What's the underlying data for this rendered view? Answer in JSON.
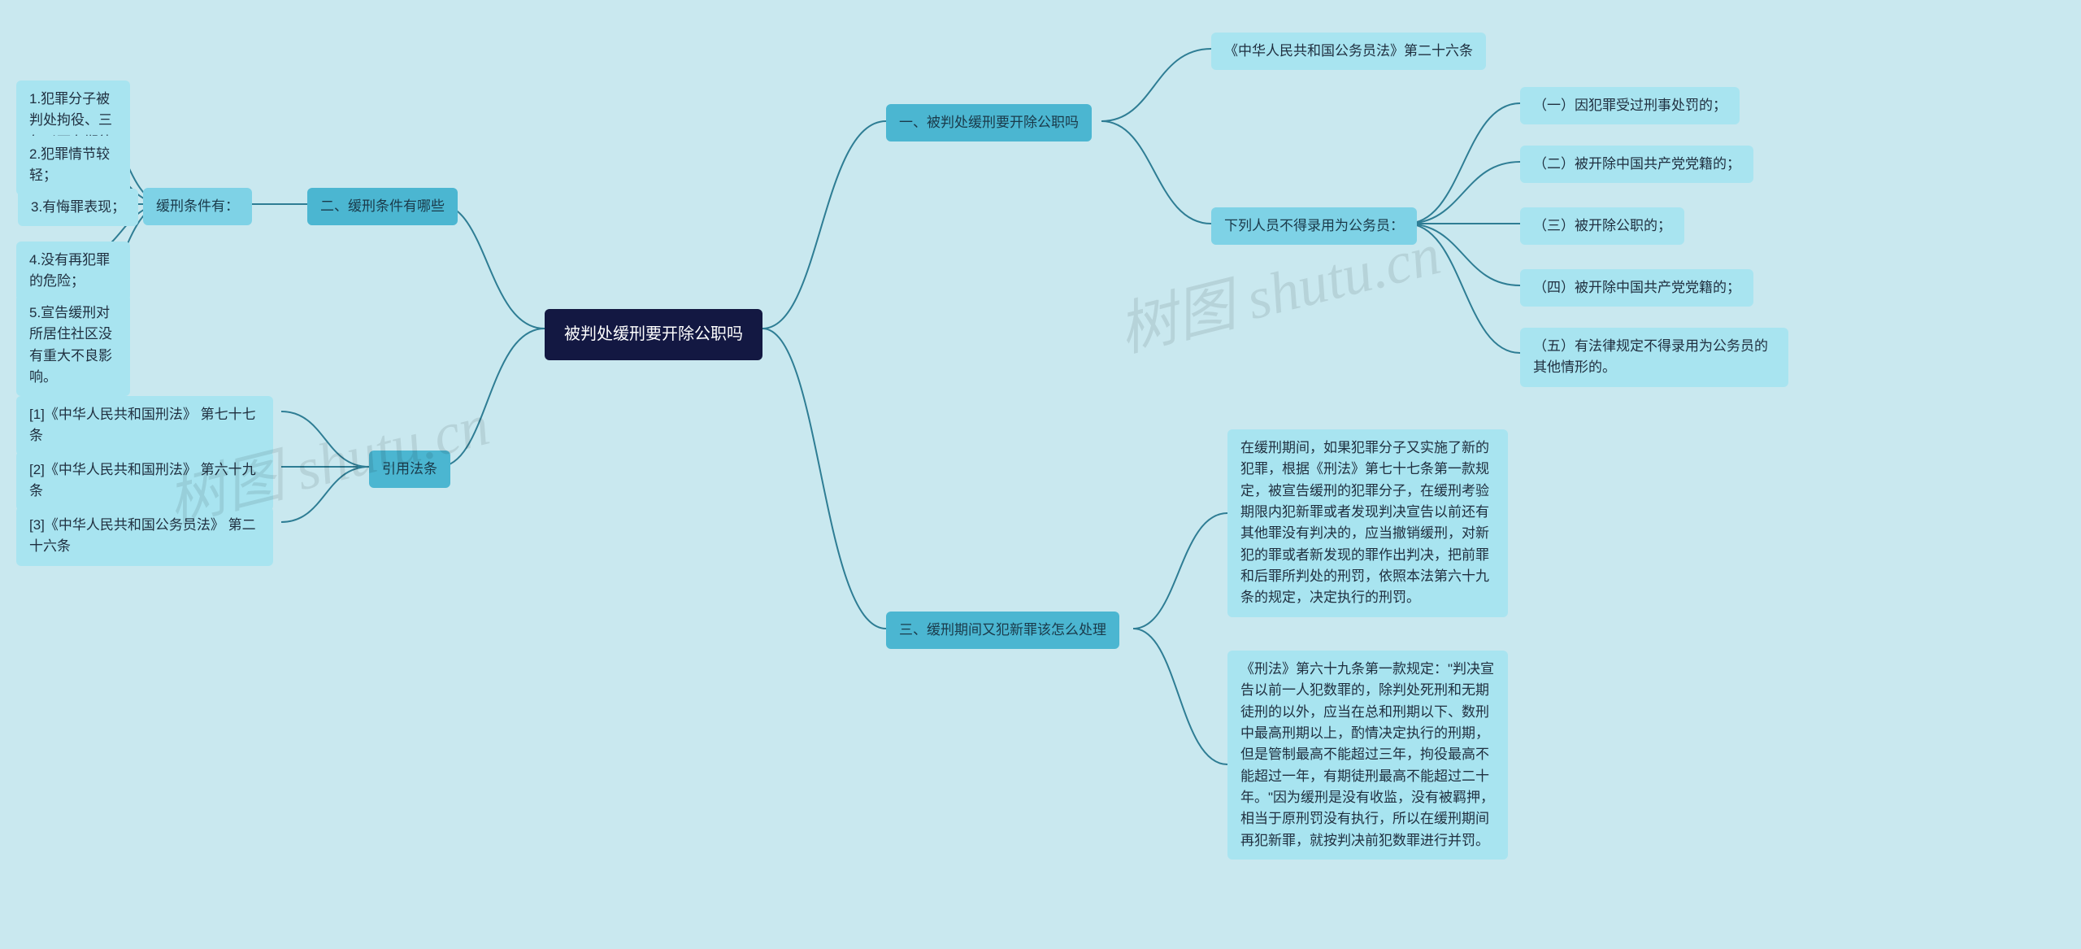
{
  "background_color": "#c9e8ef",
  "colors": {
    "root_bg": "#131842",
    "root_text": "#ffffff",
    "branch1_bg": "#4bb6d1",
    "branch2_bg": "#7ed2e6",
    "leaf_bg": "#a8e4f0",
    "connector": "#2e7d94",
    "text": "#203040"
  },
  "watermark_text": "树图 shutu.cn",
  "root": "被判处缓刑要开除公职吗",
  "right": {
    "b1": {
      "label": "一、被判处缓刑要开除公职吗",
      "c1": "《中华人民共和国公务员法》第二十六条",
      "c2": {
        "label": "下列人员不得录用为公务员：",
        "items": {
          "i1": "（一）因犯罪受过刑事处罚的；",
          "i2": "（二）被开除中国共产党党籍的；",
          "i3": "（三）被开除公职的；",
          "i4": "（四）被开除中国共产党党籍的；",
          "i5": "（五）有法律规定不得录用为公务员的其他情形的。"
        }
      }
    },
    "b3": {
      "label": "三、缓刑期间又犯新罪该怎么处理",
      "p1": "在缓刑期间，如果犯罪分子又实施了新的犯罪，根据《刑法》第七十七条第一款规定，被宣告缓刑的犯罪分子，在缓刑考验期限内犯新罪或者发现判决宣告以前还有其他罪没有判决的，应当撤销缓刑，对新犯的罪或者新发现的罪作出判决，把前罪和后罪所判处的刑罚，依照本法第六十九条的规定，决定执行的刑罚。",
      "p2": "《刑法》第六十九条第一款规定：\"判决宣告以前一人犯数罪的，除判处死刑和无期徒刑的以外，应当在总和刑期以下、数刑中最高刑期以上，酌情决定执行的刑期，但是管制最高不能超过三年，拘役最高不能超过一年，有期徒刑最高不能超过二十年。\"因为缓刑是没有收监，没有被羁押，相当于原刑罚没有执行，所以在缓刑期间再犯新罪，就按判决前犯数罪进行并罚。"
    }
  },
  "left": {
    "b2": {
      "label": "二、缓刑条件有哪些",
      "sub": "缓刑条件有：",
      "items": {
        "i1": "1.犯罪分子被判处拘役、三年以下有期徒刑的；",
        "i2": "2.犯罪情节较轻；",
        "i3": "3.有悔罪表现；",
        "i4": "4.没有再犯罪的危险；",
        "i5": "5.宣告缓刑对所居住社区没有重大不良影响。"
      }
    },
    "b4": {
      "label": "引用法条",
      "items": {
        "i1": "[1]《中华人民共和国刑法》 第七十七条",
        "i2": "[2]《中华人民共和国刑法》 第六十九条",
        "i3": "[3]《中华人民共和国公务员法》 第二十六条"
      }
    }
  }
}
